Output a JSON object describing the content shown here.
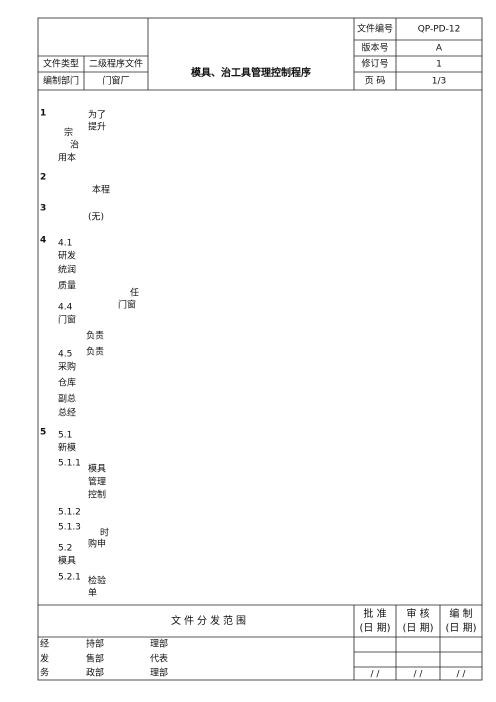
{
  "header": {
    "title": "模具、治工具管理控制程序",
    "fields": [
      {
        "label": "文件类型",
        "value": "二级程序文件"
      },
      {
        "label": "编制部门",
        "value": "门窗厂"
      }
    ],
    "meta": [
      {
        "label": "文件编号",
        "value": "QP-PD-12"
      },
      {
        "label": "版本号",
        "value": "A"
      },
      {
        "label": "修订号",
        "value": "1"
      },
      {
        "label": "页 码",
        "value": "1/3"
      }
    ]
  },
  "body": {
    "fragments": [
      "1",
      "为了",
      "提升",
      "宗",
      "治",
      "用本",
      "2",
      "本程",
      "3",
      "(无)",
      "4",
      "4.1",
      "研发",
      "统润",
      "质量",
      "任",
      "4.4",
      "门窗",
      "门窗",
      "负责",
      "负责",
      "4.5",
      "采购",
      "仓库",
      "副总",
      "总经",
      "5",
      "5.1",
      "新模",
      "5.1.1",
      "模具",
      "管理",
      "控制",
      "5.1.2",
      "5.1.3",
      "时",
      "购申",
      "5.2",
      "模具",
      "5.2.1",
      "检验",
      "单"
    ]
  },
  "footer": {
    "title": "文件分发范围",
    "approvals": [
      {
        "role": "批 准",
        "date": "(日 期)"
      },
      {
        "role": "审 核",
        "date": "(日 期)"
      },
      {
        "role": "编 制",
        "date": "(日 期)"
      }
    ],
    "rows": [
      [
        "经",
        "持部",
        "理部"
      ],
      [
        "发",
        "售部",
        "代表"
      ],
      [
        "务",
        "政部",
        "理部"
      ]
    ],
    "signatures": [
      "/ /",
      "/ /",
      "/ /"
    ]
  }
}
